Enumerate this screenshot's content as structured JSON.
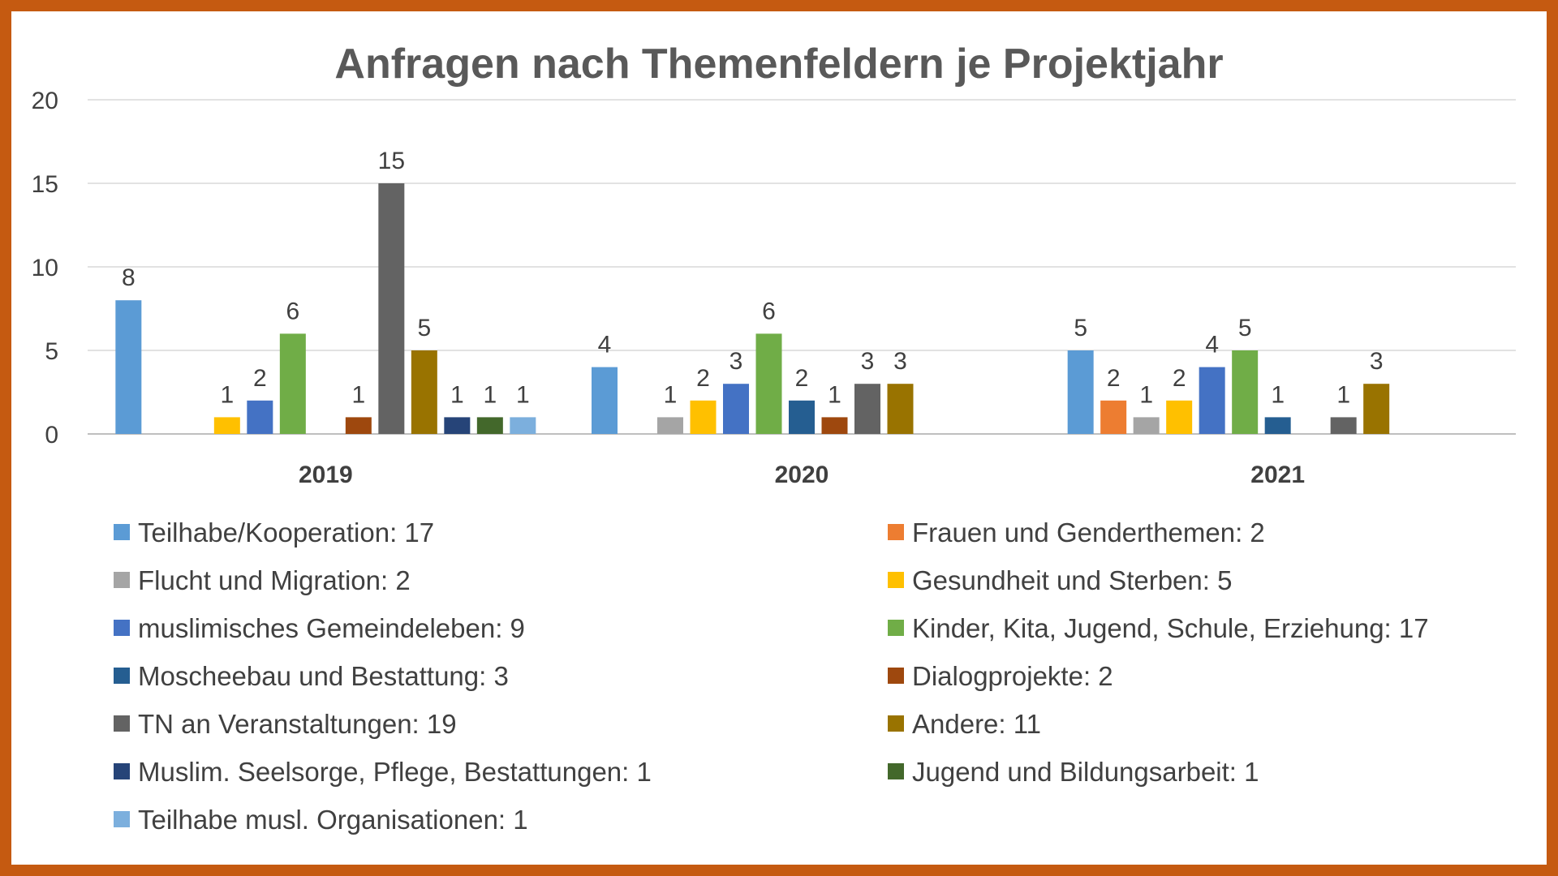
{
  "chart_data": {
    "type": "bar",
    "title": "Anfragen nach Themenfeldern je Projektjahr",
    "xlabel": "",
    "ylabel": "",
    "ylim": [
      0,
      20
    ],
    "yticks": [
      0,
      5,
      10,
      15,
      20
    ],
    "grid": true,
    "legend_position": "bottom",
    "categories": [
      "2019",
      "2020",
      "2021"
    ],
    "series": [
      {
        "name": "Teilhabe/Kooperation: 17",
        "color": "#5b9bd5",
        "values": [
          8,
          4,
          5
        ]
      },
      {
        "name": "Frauen und Genderthemen: 2",
        "color": "#ed7d31",
        "values": [
          null,
          null,
          2
        ]
      },
      {
        "name": "Flucht und Migration: 2",
        "color": "#a5a5a5",
        "values": [
          null,
          1,
          1
        ]
      },
      {
        "name": "Gesundheit und Sterben: 5",
        "color": "#ffc000",
        "values": [
          1,
          2,
          2
        ]
      },
      {
        "name": "muslimisches Gemeindeleben: 9",
        "color": "#4472c4",
        "values": [
          2,
          3,
          4
        ]
      },
      {
        "name": "Kinder, Kita, Jugend, Schule, Erziehung: 17",
        "color": "#70ad47",
        "values": [
          6,
          6,
          5
        ]
      },
      {
        "name": "Moscheebau und Bestattung: 3",
        "color": "#255e91",
        "values": [
          null,
          2,
          1
        ]
      },
      {
        "name": "Dialogprojekte: 2",
        "color": "#9e480e",
        "values": [
          1,
          1,
          null
        ]
      },
      {
        "name": "TN an Veranstaltungen: 19",
        "color": "#636363",
        "values": [
          15,
          3,
          1
        ]
      },
      {
        "name": "Andere: 11",
        "color": "#997300",
        "values": [
          5,
          3,
          3
        ]
      },
      {
        "name": "Muslim. Seelsorge, Pflege, Bestattungen: 1",
        "color": "#264478",
        "values": [
          1,
          null,
          null
        ]
      },
      {
        "name": "Jugend und Bildungsarbeit: 1",
        "color": "#43682b",
        "values": [
          1,
          null,
          null
        ]
      },
      {
        "name": "Teilhabe musl. Organisationen: 1",
        "color": "#7cafdd",
        "values": [
          1,
          null,
          null
        ]
      }
    ]
  }
}
